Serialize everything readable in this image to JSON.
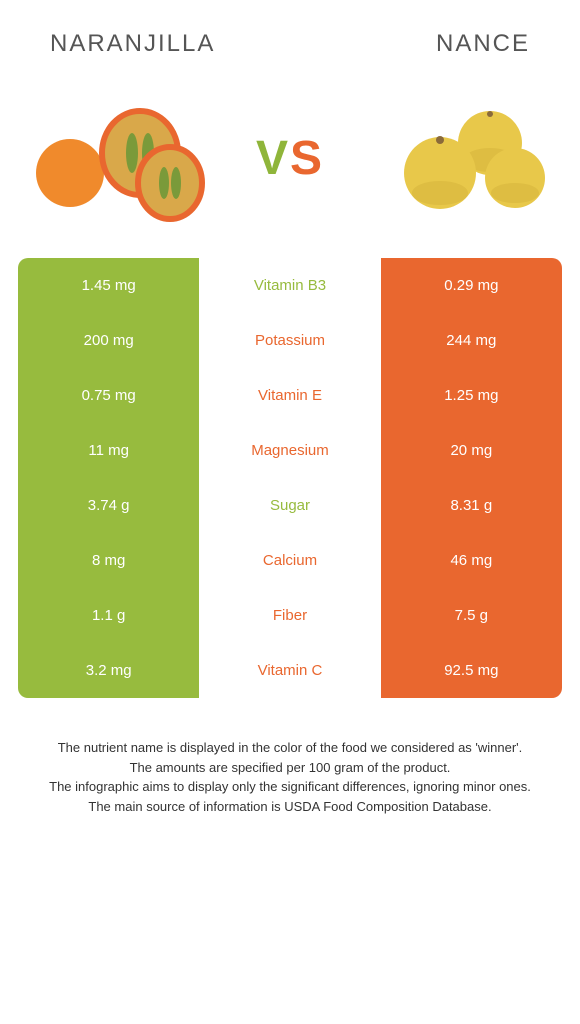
{
  "header": {
    "left_title": "Naranjilla",
    "right_title": "Nance"
  },
  "vs": {
    "v": "V",
    "s": "S"
  },
  "colors": {
    "left_bg": "#97bb3e",
    "right_bg": "#e9672f",
    "left_text": "#97bb3e",
    "right_text": "#e9672f",
    "mid_bg": "#ffffff"
  },
  "rows": [
    {
      "left": "1.45 mg",
      "label": "Vitamin B3",
      "right": "0.29 mg",
      "winner": "left"
    },
    {
      "left": "200 mg",
      "label": "Potassium",
      "right": "244 mg",
      "winner": "right"
    },
    {
      "left": "0.75 mg",
      "label": "Vitamin E",
      "right": "1.25 mg",
      "winner": "right"
    },
    {
      "left": "11 mg",
      "label": "Magnesium",
      "right": "20 mg",
      "winner": "right"
    },
    {
      "left": "3.74 g",
      "label": "Sugar",
      "right": "8.31 g",
      "winner": "left"
    },
    {
      "left": "8 mg",
      "label": "Calcium",
      "right": "46 mg",
      "winner": "right"
    },
    {
      "left": "1.1 g",
      "label": "Fiber",
      "right": "7.5 g",
      "winner": "right"
    },
    {
      "left": "3.2 mg",
      "label": "Vitamin C",
      "right": "92.5 mg",
      "winner": "right"
    }
  ],
  "footer": {
    "line1": "The nutrient name is displayed in the color of the food we considered as 'winner'.",
    "line2": "The amounts are specified per 100 gram of the product.",
    "line3": "The infographic aims to display only the significant differences, ignoring minor ones.",
    "line4": "The main source of information is USDA Food Composition Database."
  }
}
